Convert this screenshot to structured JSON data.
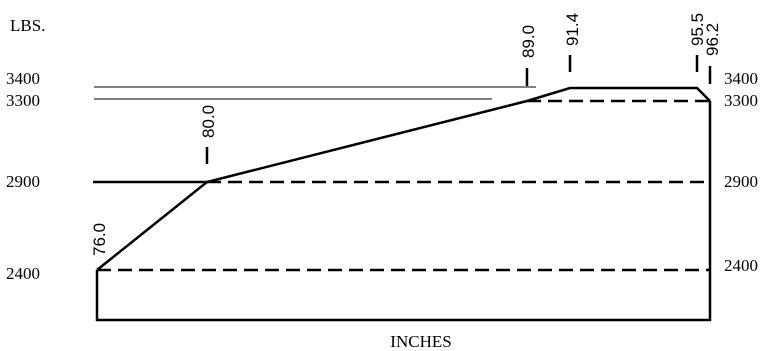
{
  "chart_data": {
    "type": "line",
    "title": "",
    "xlabel": "INCHES",
    "ylabel": "LBS.",
    "xlim": [
      74,
      97
    ],
    "ylim": [
      2000,
      3600
    ],
    "y_ticks_left": [
      "3400",
      "3300",
      "2900",
      "2400"
    ],
    "y_ticks_right": [
      "3400",
      "3300",
      "2900",
      "2400"
    ],
    "envelope": [
      {
        "x": 76.0,
        "y": 2400,
        "label": "76.0"
      },
      {
        "x": 80.0,
        "y": 2900,
        "label": "80.0"
      },
      {
        "x": 89.0,
        "y": 3300,
        "label": "89.0"
      },
      {
        "x": 91.4,
        "y": 3400,
        "label": "91.4"
      },
      {
        "x": 95.5,
        "y": 3400,
        "label": "95.5"
      },
      {
        "x": 96.2,
        "y": 3300,
        "label": "96.2"
      }
    ],
    "dashed_levels": [
      2400,
      2900,
      3300
    ],
    "grid": false
  }
}
